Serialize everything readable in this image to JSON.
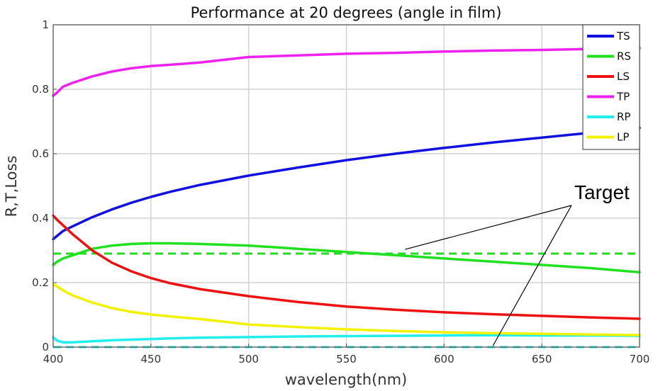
{
  "chart_data": {
    "type": "line",
    "title": "Performance at 20 degrees (angle in film)",
    "xlabel": "wavelength(nm)",
    "ylabel": "R,T,Loss",
    "xlim": [
      400,
      700
    ],
    "ylim": [
      0,
      1
    ],
    "xticks": [
      400,
      450,
      500,
      550,
      600,
      650,
      700
    ],
    "yticks": [
      0,
      0.2,
      0.4,
      0.6,
      0.8,
      1
    ],
    "ytick_labels": [
      "0",
      "0.2",
      "0.4",
      "0.6",
      "0.8",
      "1"
    ],
    "grid": true,
    "legend_position": "top-right",
    "x": [
      400,
      402,
      405,
      410,
      420,
      430,
      440,
      450,
      460,
      475,
      500,
      525,
      550,
      575,
      600,
      625,
      650,
      675,
      700
    ],
    "series": [
      {
        "name": "TS",
        "color": "#1010e0",
        "values": [
          0.335,
          0.345,
          0.36,
          0.375,
          0.403,
          0.427,
          0.448,
          0.466,
          0.482,
          0.503,
          0.532,
          0.557,
          0.58,
          0.6,
          0.618,
          0.635,
          0.65,
          0.665,
          0.68
        ]
      },
      {
        "name": "RS",
        "color": "#20e020",
        "values": [
          0.255,
          0.265,
          0.275,
          0.285,
          0.305,
          0.315,
          0.32,
          0.322,
          0.322,
          0.32,
          0.315,
          0.305,
          0.295,
          0.285,
          0.275,
          0.265,
          0.255,
          0.245,
          0.232
        ]
      },
      {
        "name": "LS",
        "color": "#ee1111",
        "values": [
          0.408,
          0.395,
          0.378,
          0.35,
          0.3,
          0.262,
          0.235,
          0.214,
          0.198,
          0.18,
          0.158,
          0.14,
          0.126,
          0.116,
          0.108,
          0.102,
          0.097,
          0.092,
          0.088
        ]
      },
      {
        "name": "TP",
        "color": "#ee22ee",
        "values": [
          0.78,
          0.79,
          0.808,
          0.82,
          0.84,
          0.855,
          0.865,
          0.872,
          0.876,
          0.883,
          0.9,
          0.905,
          0.91,
          0.913,
          0.917,
          0.92,
          0.922,
          0.925,
          0.928
        ]
      },
      {
        "name": "RP",
        "color": "#22eeee",
        "values": [
          0.03,
          0.02,
          0.015,
          0.015,
          0.018,
          0.021,
          0.023,
          0.025,
          0.027,
          0.029,
          0.031,
          0.033,
          0.034,
          0.035,
          0.036,
          0.037,
          0.036,
          0.036,
          0.035
        ]
      },
      {
        "name": "LP",
        "color": "#f2f200",
        "values": [
          0.195,
          0.188,
          0.176,
          0.16,
          0.138,
          0.121,
          0.109,
          0.101,
          0.095,
          0.087,
          0.07,
          0.062,
          0.055,
          0.05,
          0.046,
          0.043,
          0.041,
          0.039,
          0.037
        ]
      }
    ],
    "targets": [
      {
        "y": 0.29,
        "color": "#22dd22"
      },
      {
        "y": 0.0,
        "color": "#22dddd"
      }
    ],
    "annotation": {
      "text": "Target",
      "pointers": [
        [
          580,
          0.29
        ],
        [
          625,
          0.0
        ]
      ]
    }
  }
}
